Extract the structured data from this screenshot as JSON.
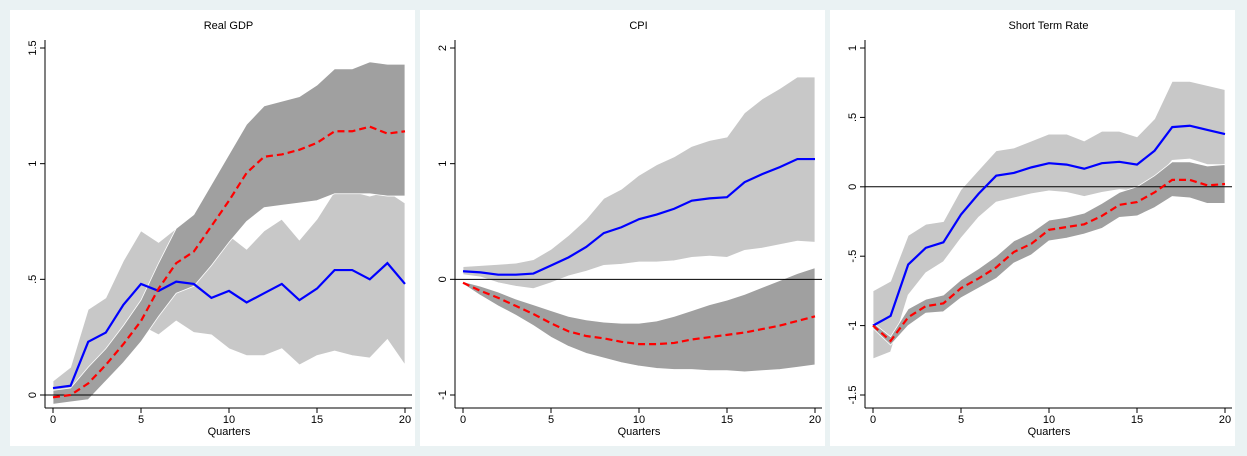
{
  "chart_data": [
    {
      "type": "line",
      "title": "Real GDP",
      "xlabel": "Quarters",
      "x": [
        0,
        1,
        2,
        3,
        4,
        5,
        6,
        7,
        8,
        9,
        10,
        11,
        12,
        13,
        14,
        15,
        16,
        17,
        18,
        19,
        20
      ],
      "xlim": [
        0,
        20
      ],
      "xticks": [
        0,
        5,
        10,
        15,
        20
      ],
      "ylim": [
        0,
        1.5
      ],
      "yticks": [
        0,
        {
          "value": 0.5,
          "label": ".5"
        },
        1,
        1.5
      ],
      "reference_line": 0,
      "bands": [
        {
          "color": "#c8c8c8",
          "lower": [
            0.01,
            0.02,
            0.1,
            0.13,
            0.2,
            0.3,
            0.26,
            0.32,
            0.27,
            0.26,
            0.2,
            0.17,
            0.17,
            0.2,
            0.13,
            0.17,
            0.19,
            0.17,
            0.16,
            0.24,
            0.13
          ],
          "upper": [
            0.06,
            0.12,
            0.37,
            0.42,
            0.58,
            0.71,
            0.66,
            0.72,
            0.73,
            0.62,
            0.69,
            0.63,
            0.71,
            0.76,
            0.67,
            0.76,
            0.88,
            0.88,
            0.86,
            0.88,
            0.83
          ]
        },
        {
          "color": "#a0a0a0",
          "lower": [
            -0.04,
            -0.03,
            -0.02,
            0.06,
            0.14,
            0.23,
            0.34,
            0.44,
            0.47,
            0.56,
            0.66,
            0.75,
            0.81,
            0.82,
            0.83,
            0.84,
            0.87,
            0.87,
            0.87,
            0.86,
            0.86
          ],
          "upper": [
            0.02,
            0.03,
            0.12,
            0.2,
            0.3,
            0.41,
            0.57,
            0.72,
            0.78,
            0.91,
            1.04,
            1.17,
            1.25,
            1.27,
            1.29,
            1.34,
            1.41,
            1.41,
            1.44,
            1.43,
            1.43
          ]
        }
      ],
      "series": [
        {
          "color": "#0000ff",
          "style": "solid",
          "values": [
            0.03,
            0.04,
            0.23,
            0.27,
            0.39,
            0.48,
            0.45,
            0.49,
            0.48,
            0.42,
            0.45,
            0.4,
            0.44,
            0.48,
            0.41,
            0.46,
            0.54,
            0.54,
            0.5,
            0.57,
            0.48
          ]
        },
        {
          "color": "#ff0000",
          "style": "dashed",
          "values": [
            -0.01,
            0,
            0.05,
            0.13,
            0.22,
            0.32,
            0.46,
            0.57,
            0.62,
            0.73,
            0.84,
            0.96,
            1.03,
            1.04,
            1.06,
            1.09,
            1.14,
            1.14,
            1.16,
            1.13,
            1.14
          ]
        }
      ]
    },
    {
      "type": "line",
      "title": "CPI",
      "xlabel": "Quarters",
      "x": [
        0,
        1,
        2,
        3,
        4,
        5,
        6,
        7,
        8,
        9,
        10,
        11,
        12,
        13,
        14,
        15,
        16,
        17,
        18,
        19,
        20
      ],
      "xlim": [
        0,
        20
      ],
      "xticks": [
        0,
        5,
        10,
        15,
        20
      ],
      "ylim": [
        -1,
        2
      ],
      "yticks": [
        -1,
        0,
        1,
        2
      ],
      "reference_line": 0,
      "bands": [
        {
          "color": "#c8c8c8",
          "lower": [
            0.04,
            0.02,
            -0.03,
            -0.06,
            -0.08,
            -0.03,
            0.03,
            0.07,
            0.12,
            0.13,
            0.15,
            0.15,
            0.16,
            0.19,
            0.2,
            0.19,
            0.25,
            0.27,
            0.3,
            0.33,
            0.32
          ],
          "upper": [
            0.11,
            0.12,
            0.13,
            0.14,
            0.17,
            0.26,
            0.38,
            0.52,
            0.7,
            0.78,
            0.9,
            0.99,
            1.06,
            1.15,
            1.2,
            1.23,
            1.44,
            1.56,
            1.65,
            1.75,
            1.75
          ]
        },
        {
          "color": "#a0a0a0",
          "lower": [
            -0.04,
            -0.14,
            -0.23,
            -0.31,
            -0.4,
            -0.5,
            -0.58,
            -0.64,
            -0.68,
            -0.72,
            -0.75,
            -0.77,
            -0.78,
            -0.78,
            -0.79,
            -0.79,
            -0.8,
            -0.79,
            -0.78,
            -0.76,
            -0.74
          ],
          "upper": [
            -0.02,
            -0.06,
            -0.11,
            -0.17,
            -0.22,
            -0.27,
            -0.32,
            -0.35,
            -0.37,
            -0.38,
            -0.38,
            -0.36,
            -0.32,
            -0.27,
            -0.22,
            -0.18,
            -0.13,
            -0.07,
            -0.01,
            0.05,
            0.1
          ]
        }
      ],
      "series": [
        {
          "color": "#0000ff",
          "style": "solid",
          "values": [
            0.07,
            0.06,
            0.04,
            0.04,
            0.05,
            0.12,
            0.19,
            0.28,
            0.4,
            0.45,
            0.52,
            0.56,
            0.61,
            0.68,
            0.7,
            0.71,
            0.84,
            0.91,
            0.97,
            1.04,
            1.04
          ]
        },
        {
          "color": "#ff0000",
          "style": "dashed",
          "values": [
            -0.03,
            -0.1,
            -0.16,
            -0.23,
            -0.3,
            -0.38,
            -0.45,
            -0.49,
            -0.51,
            -0.54,
            -0.56,
            -0.56,
            -0.55,
            -0.52,
            -0.5,
            -0.48,
            -0.46,
            -0.43,
            -0.4,
            -0.36,
            -0.32
          ]
        }
      ]
    },
    {
      "type": "line",
      "title": "Short Term Rate",
      "xlabel": "Quarters",
      "x": [
        0,
        1,
        2,
        3,
        4,
        5,
        6,
        7,
        8,
        9,
        10,
        11,
        12,
        13,
        14,
        15,
        16,
        17,
        18,
        19,
        20
      ],
      "xlim": [
        0,
        20
      ],
      "xticks": [
        0,
        5,
        10,
        15,
        20
      ],
      "ylim": [
        -1.5,
        1
      ],
      "yticks": [
        -1.5,
        -1,
        {
          "value": -0.5,
          "label": "-.5"
        },
        0,
        {
          "value": 0.5,
          "label": ".5"
        },
        1
      ],
      "reference_line": 0,
      "bands": [
        {
          "color": "#c8c8c8",
          "lower": [
            -1.24,
            -1.19,
            -0.78,
            -0.62,
            -0.54,
            -0.37,
            -0.22,
            -0.11,
            -0.08,
            -0.05,
            -0.03,
            -0.04,
            -0.07,
            -0.04,
            -0.02,
            -0.03,
            0.04,
            0.19,
            0.2,
            0.16,
            0.16
          ],
          "upper": [
            -0.75,
            -0.68,
            -0.35,
            -0.27,
            -0.25,
            -0.02,
            0.12,
            0.26,
            0.28,
            0.33,
            0.38,
            0.38,
            0.33,
            0.4,
            0.4,
            0.36,
            0.49,
            0.76,
            0.76,
            0.73,
            0.7
          ]
        },
        {
          "color": "#a0a0a0",
          "lower": [
            -1.02,
            -1.14,
            -1,
            -0.91,
            -0.9,
            -0.8,
            -0.73,
            -0.66,
            -0.55,
            -0.49,
            -0.39,
            -0.37,
            -0.34,
            -0.3,
            -0.22,
            -0.21,
            -0.15,
            -0.07,
            -0.08,
            -0.12,
            -0.12
          ],
          "upper": [
            -0.98,
            -1.08,
            -0.88,
            -0.81,
            -0.78,
            -0.67,
            -0.59,
            -0.5,
            -0.39,
            -0.33,
            -0.24,
            -0.22,
            -0.19,
            -0.12,
            -0.04,
            0,
            0.08,
            0.18,
            0.18,
            0.15,
            0.16
          ]
        }
      ],
      "series": [
        {
          "color": "#0000ff",
          "style": "solid",
          "values": [
            -1,
            -0.93,
            -0.56,
            -0.44,
            -0.4,
            -0.2,
            -0.05,
            0.08,
            0.1,
            0.14,
            0.17,
            0.16,
            0.13,
            0.17,
            0.18,
            0.16,
            0.26,
            0.43,
            0.44,
            0.41,
            0.38
          ]
        },
        {
          "color": "#ff0000",
          "style": "dashed",
          "values": [
            -1,
            -1.11,
            -0.94,
            -0.86,
            -0.84,
            -0.73,
            -0.66,
            -0.58,
            -0.47,
            -0.41,
            -0.31,
            -0.29,
            -0.27,
            -0.21,
            -0.13,
            -0.11,
            -0.04,
            0.05,
            0.05,
            0.01,
            0.02
          ]
        }
      ]
    }
  ]
}
